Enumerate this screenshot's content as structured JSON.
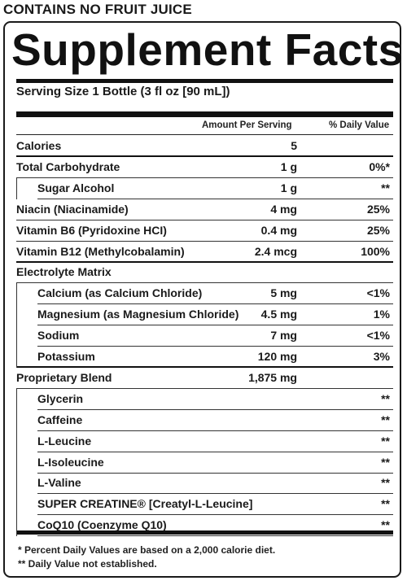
{
  "header_note": "CONTAINS NO FRUIT JUICE",
  "panel": {
    "title": "Supplement Facts",
    "serving_size": "Serving Size 1 Bottle (3 fl oz [90 mL])",
    "col_amount": "Amount Per Serving",
    "col_dv": "% Daily Value"
  },
  "rows": [
    {
      "name": "Calories",
      "amount": "5",
      "dv": ""
    },
    {
      "name": "Total Carbohydrate",
      "amount": "1 g",
      "dv": "0%*"
    },
    {
      "name": "Sugar Alcohol",
      "amount": "1 g",
      "dv": "**"
    },
    {
      "name": "Niacin (Niacinamide)",
      "amount": "4 mg",
      "dv": "25%"
    },
    {
      "name": "Vitamin B6 (Pyridoxine HCI)",
      "amount": "0.4 mg",
      "dv": "25%"
    },
    {
      "name": "Vitamin B12 (Methylcobalamin)",
      "amount": "2.4 mcg",
      "dv": "100%"
    },
    {
      "name": "Electrolyte Matrix",
      "amount": "",
      "dv": ""
    },
    {
      "name": "Calcium (as Calcium Chloride)",
      "amount": "5 mg",
      "dv": "<1%"
    },
    {
      "name": "Magnesium (as Magnesium Chloride)",
      "amount": "4.5 mg",
      "dv": "1%"
    },
    {
      "name": "Sodium",
      "amount": "7 mg",
      "dv": "<1%"
    },
    {
      "name": "Potassium",
      "amount": "120 mg",
      "dv": "3%"
    },
    {
      "name": "Proprietary Blend",
      "amount": "1,875 mg",
      "dv": ""
    },
    {
      "name": "Glycerin",
      "amount": "",
      "dv": "**"
    },
    {
      "name": "Caffeine",
      "amount": "",
      "dv": "**"
    },
    {
      "name": "L-Leucine",
      "amount": "",
      "dv": "**"
    },
    {
      "name": "L-Isoleucine",
      "amount": "",
      "dv": "**"
    },
    {
      "name": "L-Valine",
      "amount": "",
      "dv": "**"
    },
    {
      "name": "SUPER CREATINE® [Creatyl-L-Leucine]",
      "amount": "",
      "dv": "**"
    },
    {
      "name": "CoQ10 (Coenzyme Q10)",
      "amount": "",
      "dv": "**"
    }
  ],
  "footnotes": [
    "* Percent Daily Values are based on a 2,000 calorie diet.",
    "** Daily Value not established."
  ]
}
